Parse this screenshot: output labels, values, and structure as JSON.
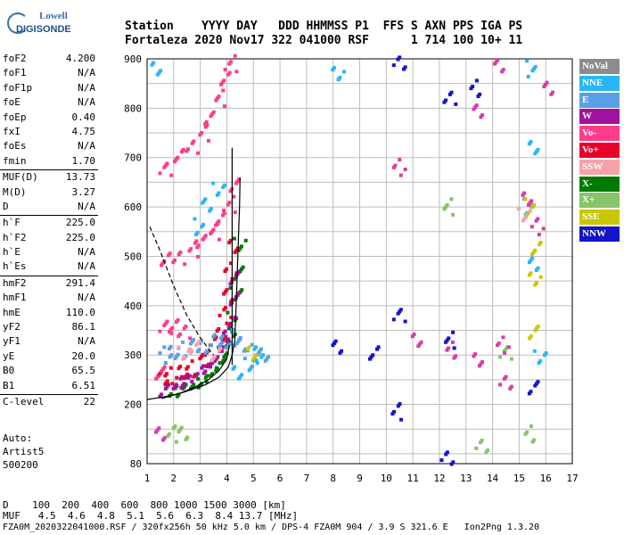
{
  "logo": {
    "top": "Lowell",
    "bottom": "DIGISONDE"
  },
  "header": {
    "line1": "Station    YYYY DAY   DDD HHMMSS P1  FFS S AXN PPS IGA PS",
    "line2": "Fortaleza 2020 Nov17 322 041000 RSF      1 714 100 10+ 11"
  },
  "params": [
    {
      "name": "foF2",
      "value": "4.200"
    },
    {
      "name": "foF1",
      "value": "N/A"
    },
    {
      "name": "foF1p",
      "value": "N/A"
    },
    {
      "name": "foE",
      "value": "N/A"
    },
    {
      "name": "foEp",
      "value": "0.40"
    },
    {
      "name": "fxI",
      "value": "4.75"
    },
    {
      "name": "foEs",
      "value": "N/A"
    },
    {
      "name": "fmin",
      "value": "1.70"
    },
    {
      "name": "MUF(D)",
      "value": "13.73",
      "sep": true
    },
    {
      "name": "M(D)",
      "value": "3.27"
    },
    {
      "name": "D",
      "value": "N/A"
    },
    {
      "name": "h`F",
      "value": "225.0",
      "sep": true
    },
    {
      "name": "h`F2",
      "value": "225.0"
    },
    {
      "name": "h`E",
      "value": "N/A"
    },
    {
      "name": "h`Es",
      "value": "N/A"
    },
    {
      "name": "hmF2",
      "value": "291.4",
      "sep": true
    },
    {
      "name": "hmF1",
      "value": "N/A"
    },
    {
      "name": "hmE",
      "value": "110.0"
    },
    {
      "name": "yF2",
      "value": "86.1"
    },
    {
      "name": "yF1",
      "value": "N/A"
    },
    {
      "name": "yE",
      "value": "20.0"
    },
    {
      "name": "B0",
      "value": "65.5"
    },
    {
      "name": "B1",
      "value": "6.51"
    },
    {
      "name": "C-level",
      "value": "22",
      "sep": true
    }
  ],
  "auto": {
    "line1": "Auto:",
    "line2": "Artist5",
    "line3": "500200"
  },
  "legend": [
    {
      "label": "NoVal",
      "color": "#8c8c8c"
    },
    {
      "label": "NNE",
      "color": "#29b6f6"
    },
    {
      "label": "E",
      "color": "#5aa0e6"
    },
    {
      "label": "W",
      "color": "#a0129e"
    },
    {
      "label": "Vo-",
      "color": "#ff3c8c"
    },
    {
      "label": "Vo+",
      "color": "#e8002a"
    },
    {
      "label": "SSW",
      "color": "#f5a3a8"
    },
    {
      "label": "X-",
      "color": "#007a00"
    },
    {
      "label": "X+",
      "color": "#86c56a"
    },
    {
      "label": "SSE",
      "color": "#c8c800"
    },
    {
      "label": "NNW",
      "color": "#1414c8"
    }
  ],
  "footer": {
    "line1": "D    100  200  400  600  800 1000 1500 3000 [km]",
    "line2": "MUF   4.5  4.6  4.8  5.1  5.6  6.3  8.4 13.7 [MHz]",
    "line3": "FZA0M_2020322041000.RSF / 320fx256h 50 kHz 5.0 km / DPS-4 FZA0M 904 / 3.9 S 321.6 E   Ion2Png 1.3.20"
  },
  "chart_data": {
    "type": "scatter",
    "xlim": [
      1,
      17
    ],
    "ylim": [
      80,
      900
    ],
    "xticks": [
      1,
      2,
      3,
      4,
      5,
      6,
      7,
      8,
      9,
      10,
      11,
      12,
      13,
      14,
      15,
      16,
      17
    ],
    "yticks": [
      80,
      200,
      300,
      400,
      500,
      600,
      700,
      800,
      900
    ],
    "grid": true,
    "traces": [
      {
        "name": "X-",
        "color": "#007a00",
        "points": [
          [
            1.9,
            225
          ],
          [
            2.3,
            232
          ],
          [
            2.7,
            240
          ],
          [
            3.1,
            250
          ],
          [
            3.4,
            262
          ],
          [
            3.7,
            280
          ],
          [
            3.9,
            300
          ],
          [
            4.1,
            330
          ],
          [
            4.25,
            370
          ],
          [
            4.35,
            420
          ],
          [
            4.45,
            470
          ],
          [
            4.5,
            520
          ]
        ]
      },
      {
        "name": "Vo+",
        "color": "#e8002a",
        "points": [
          [
            1.6,
            255
          ],
          [
            1.9,
            258
          ],
          [
            2.3,
            265
          ],
          [
            2.7,
            272
          ],
          [
            3.1,
            285
          ],
          [
            3.4,
            300
          ],
          [
            3.6,
            320
          ],
          [
            3.8,
            345
          ],
          [
            3.95,
            380
          ],
          [
            4.05,
            420
          ],
          [
            4.15,
            470
          ],
          [
            4.2,
            520
          ]
        ]
      },
      {
        "name": "W",
        "color": "#a0129e",
        "points": [
          [
            1.7,
            232
          ],
          [
            2.1,
            240
          ],
          [
            2.5,
            250
          ],
          [
            2.9,
            262
          ],
          [
            3.3,
            275
          ],
          [
            3.6,
            292
          ],
          [
            3.9,
            320
          ],
          [
            4.1,
            360
          ],
          [
            4.25,
            410
          ],
          [
            4.35,
            460
          ]
        ]
      },
      {
        "name": "E",
        "color": "#5aa0e6",
        "points": [
          [
            1.7,
            300
          ],
          [
            2.0,
            305
          ],
          [
            2.4,
            310
          ],
          [
            2.8,
            315
          ],
          [
            3.2,
            320
          ],
          [
            3.6,
            325
          ],
          [
            4.0,
            330
          ],
          [
            4.3,
            335
          ],
          [
            4.6,
            320
          ],
          [
            5.0,
            305
          ],
          [
            5.4,
            300
          ]
        ]
      },
      {
        "name": "Vo-",
        "color": "#ff3c8c",
        "points": [
          [
            1.7,
            490
          ],
          [
            2.2,
            500
          ],
          [
            2.7,
            515
          ],
          [
            3.1,
            530
          ],
          [
            3.5,
            550
          ],
          [
            3.8,
            575
          ],
          [
            4.1,
            605
          ],
          [
            4.3,
            640
          ],
          [
            1.7,
            680
          ],
          [
            2.2,
            700
          ],
          [
            2.7,
            725
          ],
          [
            3.1,
            750
          ],
          [
            3.4,
            780
          ],
          [
            3.7,
            820
          ],
          [
            4.0,
            860
          ],
          [
            4.15,
            890
          ],
          [
            1.5,
            260
          ],
          [
            1.7,
            360
          ],
          [
            2.0,
            355
          ],
          [
            2.4,
            350
          ]
        ]
      },
      {
        "name": "NNE",
        "color": "#29b6f6",
        "points": [
          [
            1.4,
            880
          ],
          [
            2.9,
            560
          ],
          [
            3.3,
            600
          ],
          [
            3.7,
            640
          ],
          [
            4.4,
            260
          ],
          [
            4.9,
            285
          ],
          [
            5.2,
            300
          ],
          [
            8.2,
            870
          ],
          [
            15.4,
            880
          ],
          [
            15.6,
            720
          ],
          [
            15.3,
            600
          ],
          [
            15.6,
            480
          ],
          [
            15.8,
            300
          ]
        ]
      },
      {
        "name": "NNW",
        "color": "#1414c8",
        "points": [
          [
            10.5,
            895
          ],
          [
            10.4,
            185
          ],
          [
            10.5,
            380
          ],
          [
            12.4,
            330
          ],
          [
            12.4,
            820
          ],
          [
            13.3,
            840
          ],
          [
            15.6,
            230
          ],
          [
            8.1,
            320
          ],
          [
            9.6,
            300
          ],
          [
            12.3,
            95
          ]
        ]
      },
      {
        "name": "SSE",
        "color": "#c8c800",
        "points": [
          [
            15.4,
            600
          ],
          [
            15.6,
            450
          ],
          [
            15.5,
            350
          ],
          [
            5.0,
            300
          ],
          [
            15.6,
            520
          ]
        ]
      },
      {
        "name": "X+",
        "color": "#86c56a",
        "points": [
          [
            2.0,
            140
          ],
          [
            2.3,
            141
          ],
          [
            12.4,
            600
          ],
          [
            13.6,
            115
          ],
          [
            15.4,
            140
          ],
          [
            14.5,
            300
          ]
        ]
      },
      {
        "name": "SSW",
        "color": "#f5a3a8",
        "points": [
          [
            2.4,
            300
          ],
          [
            2.8,
            320
          ],
          [
            15.2,
            580
          ],
          [
            3.6,
            305
          ]
        ]
      },
      {
        "name": "Vo-/W misc",
        "color": "#d63ca8",
        "points": [
          [
            1.5,
            140
          ],
          [
            10.5,
            680
          ],
          [
            11.1,
            330
          ],
          [
            12.5,
            310
          ],
          [
            13.4,
            790
          ],
          [
            14.3,
            890
          ],
          [
            14.5,
            240
          ],
          [
            15.3,
            620
          ],
          [
            15.7,
            560
          ],
          [
            16.1,
            840
          ],
          [
            14.4,
            320
          ],
          [
            13.4,
            290
          ]
        ]
      }
    ],
    "curves": [
      {
        "name": "profile",
        "color": "#000",
        "points": [
          [
            1.55,
            212
          ],
          [
            2.4,
            225
          ],
          [
            3.2,
            240
          ],
          [
            3.7,
            255
          ],
          [
            4.05,
            275
          ],
          [
            4.2,
            300
          ],
          [
            4.3,
            330
          ],
          [
            4.35,
            400
          ],
          [
            4.4,
            480
          ],
          [
            4.45,
            560
          ],
          [
            4.48,
            600
          ],
          [
            4.5,
            660
          ]
        ]
      },
      {
        "name": "profile-lower",
        "color": "#000",
        "points": [
          [
            1.0,
            210
          ],
          [
            1.6,
            215
          ],
          [
            2.2,
            222
          ],
          [
            2.8,
            235
          ],
          [
            3.3,
            250
          ],
          [
            3.7,
            268
          ],
          [
            4.0,
            292
          ],
          [
            4.1,
            320
          ]
        ]
      },
      {
        "name": "boundary-dashed",
        "color": "#000",
        "dashed": true,
        "points": [
          [
            1.1,
            560
          ],
          [
            1.5,
            510
          ],
          [
            2.0,
            440
          ],
          [
            2.5,
            380
          ],
          [
            3.0,
            335
          ],
          [
            3.5,
            300
          ]
        ]
      },
      {
        "name": "fxI-line",
        "color": "#000",
        "points": [
          [
            4.2,
            280
          ],
          [
            4.2,
            720
          ]
        ]
      }
    ]
  }
}
